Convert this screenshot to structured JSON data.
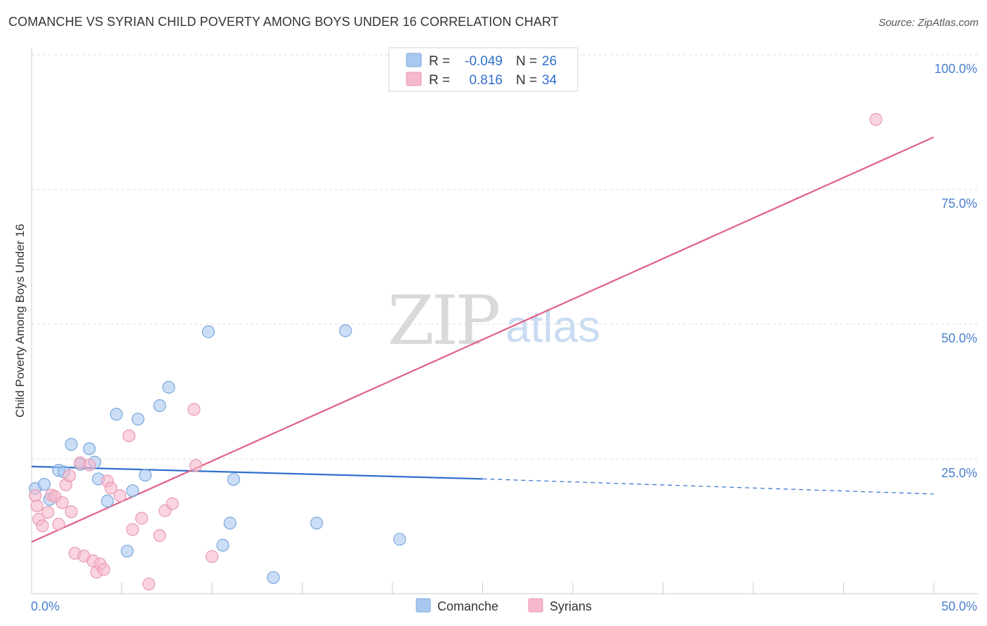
{
  "header": {
    "title": "COMANCHE VS SYRIAN CHILD POVERTY AMONG BOYS UNDER 16 CORRELATION CHART",
    "source": "Source: ZipAtlas.com"
  },
  "watermark": {
    "zip": "ZIP",
    "atlas": "atlas"
  },
  "legend": {
    "rows": [
      {
        "r_label": "R =",
        "r_value": "-0.049",
        "n_label": "N =",
        "n_value": "26",
        "color": "#a8c8f0"
      },
      {
        "r_label": "R =",
        "r_value": "0.816",
        "n_label": "N =",
        "n_value": "34",
        "color": "#f6b8cb"
      }
    ]
  },
  "bottom_legend": [
    {
      "label": "Comanche",
      "color": "#a8c8f0"
    },
    {
      "label": "Syrians",
      "color": "#f6b8cb"
    }
  ],
  "chart_data": {
    "type": "scatter",
    "title": "COMANCHE VS SYRIAN CHILD POVERTY AMONG BOYS UNDER 16 CORRELATION CHART",
    "xlabel": "",
    "ylabel": "Child Poverty Among Boys Under 16",
    "xlim": [
      0,
      50
    ],
    "ylim": [
      0,
      100
    ],
    "x_tick_labels": [
      "0.0%",
      "50.0%"
    ],
    "y_tick_values": [
      25,
      50,
      75,
      100
    ],
    "y_tick_labels": [
      "25.0%",
      "50.0%",
      "75.0%",
      "100.0%"
    ],
    "grid": true,
    "legend_position": "top-center",
    "series": [
      {
        "name": "Comanche",
        "color": "#a8c8f0",
        "stroke": "#7aa7dc",
        "line_color": "#2f6fcd",
        "points": [
          [
            0.2,
            19.5
          ],
          [
            0.7,
            20.3
          ],
          [
            1.0,
            17.5
          ],
          [
            1.5,
            22.9
          ],
          [
            1.8,
            22.6
          ],
          [
            2.2,
            27.7
          ],
          [
            2.7,
            24.0
          ],
          [
            3.2,
            26.9
          ],
          [
            3.5,
            24.4
          ],
          [
            3.7,
            21.3
          ],
          [
            4.2,
            17.2
          ],
          [
            4.7,
            33.3
          ],
          [
            5.3,
            7.9
          ],
          [
            5.6,
            19.1
          ],
          [
            5.9,
            32.4
          ],
          [
            6.3,
            22.0
          ],
          [
            7.1,
            34.9
          ],
          [
            7.6,
            38.3
          ],
          [
            9.8,
            48.6
          ],
          [
            11.2,
            21.2
          ],
          [
            10.6,
            9.0
          ],
          [
            11.0,
            13.1
          ],
          [
            13.4,
            3.0
          ],
          [
            15.8,
            13.1
          ],
          [
            17.4,
            48.8
          ],
          [
            20.4,
            10.1
          ]
        ],
        "trend": {
          "x_start": 0,
          "y_start": 23.6,
          "x_solid_end": 25,
          "y_solid_end": 21.3,
          "x_end": 50,
          "y_end": 18.5
        }
      },
      {
        "name": "Syrians",
        "color": "#f6b8cb",
        "stroke": "#e89ab2",
        "line_color": "#e0608a",
        "points": [
          [
            0.2,
            18.2
          ],
          [
            0.3,
            16.3
          ],
          [
            0.4,
            13.8
          ],
          [
            0.6,
            12.6
          ],
          [
            0.9,
            15.1
          ],
          [
            1.1,
            18.3
          ],
          [
            1.3,
            18.0
          ],
          [
            1.5,
            12.9
          ],
          [
            1.7,
            16.9
          ],
          [
            1.9,
            20.2
          ],
          [
            2.1,
            21.9
          ],
          [
            2.2,
            15.2
          ],
          [
            2.4,
            7.5
          ],
          [
            2.7,
            24.3
          ],
          [
            2.9,
            7.0
          ],
          [
            3.2,
            23.9
          ],
          [
            3.4,
            6.1
          ],
          [
            3.6,
            4.0
          ],
          [
            3.8,
            5.5
          ],
          [
            4.0,
            4.5
          ],
          [
            4.2,
            20.9
          ],
          [
            4.4,
            19.6
          ],
          [
            4.9,
            18.2
          ],
          [
            5.4,
            29.3
          ],
          [
            5.6,
            11.9
          ],
          [
            6.1,
            14.0
          ],
          [
            6.5,
            1.8
          ],
          [
            7.1,
            10.8
          ],
          [
            7.4,
            15.4
          ],
          [
            7.8,
            16.7
          ],
          [
            9.0,
            34.2
          ],
          [
            9.1,
            23.8
          ],
          [
            10.0,
            6.9
          ],
          [
            46.8,
            88.0
          ]
        ],
        "trend": {
          "x_start": 0,
          "y_start": 9.6,
          "x_end": 50,
          "y_end": 84.7
        }
      }
    ]
  }
}
